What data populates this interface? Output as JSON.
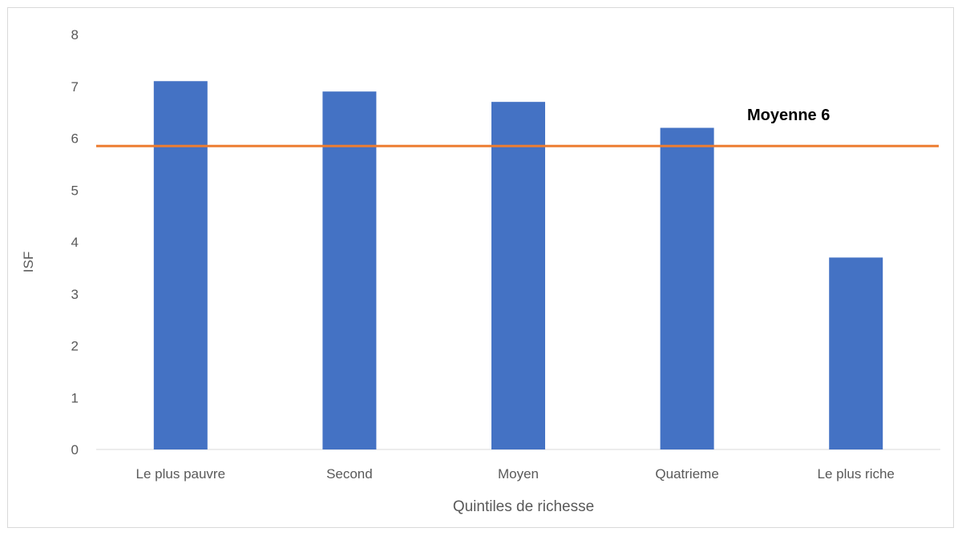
{
  "chart_data": {
    "type": "bar",
    "title": "",
    "xlabel": "Quintiles de richesse",
    "ylabel": "ISF",
    "categories": [
      "Le plus pauvre",
      "Second",
      "Moyen",
      "Quatrieme",
      "Le plus riche"
    ],
    "values": [
      7.1,
      6.9,
      6.7,
      6.2,
      3.7
    ],
    "ylim": [
      0,
      8
    ],
    "yticks": [
      "0",
      "1",
      "2",
      "3",
      "4",
      "5",
      "6",
      "7",
      "8"
    ],
    "grid": false,
    "legend": "none",
    "reference_line": {
      "label": "Moyenne 6",
      "value": 5.85,
      "color": "#ED7D31"
    },
    "bar_color": "#4472C4"
  }
}
